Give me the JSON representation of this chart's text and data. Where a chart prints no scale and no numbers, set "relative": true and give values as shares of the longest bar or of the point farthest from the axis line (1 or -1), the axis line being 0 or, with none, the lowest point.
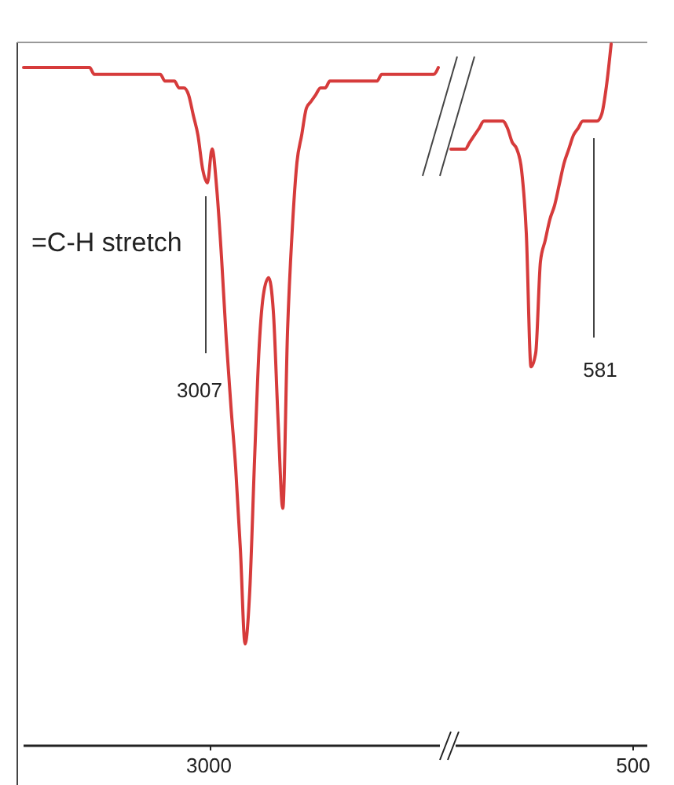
{
  "chart_data": [
    {
      "type": "line",
      "relative": true,
      "color": "#d63b3b",
      "categories": [
        null,
        null,
        null,
        null,
        null,
        null,
        null,
        null,
        null,
        null,
        null,
        null,
        null,
        null,
        null,
        null,
        null,
        null,
        null,
        null,
        null,
        null,
        null,
        null,
        null,
        null,
        null,
        null,
        null,
        null,
        null,
        null,
        null,
        null,
        null,
        null,
        null,
        null,
        null,
        null,
        null,
        null,
        null,
        null,
        null,
        null,
        null,
        null,
        null,
        null,
        null,
        null,
        null,
        null,
        null,
        null,
        null,
        null,
        null,
        null,
        null,
        null,
        null,
        null,
        null,
        null,
        null,
        null,
        null,
        null,
        null,
        null,
        null,
        null,
        null,
        null,
        null,
        null,
        null,
        null,
        null,
        null,
        null,
        null,
        null,
        null,
        null,
        null,
        null
      ],
      "values": [
        1.0,
        1.0,
        1.0,
        1.0,
        1.0,
        1.0,
        1.0,
        1.0,
        1.0,
        1.0,
        1.0,
        1.0,
        1.0,
        1.0,
        1.0,
        0.99,
        0.99,
        0.99,
        0.99,
        0.99,
        0.99,
        0.99,
        0.99,
        0.99,
        0.99,
        0.99,
        0.99,
        0.99,
        0.99,
        0.99,
        0.98,
        0.98,
        0.98,
        0.97,
        0.97,
        0.96,
        0.93,
        0.9,
        0.85,
        0.83,
        0.88,
        0.82,
        0.72,
        0.6,
        0.5,
        0.41,
        0.29,
        0.15,
        0.23,
        0.42,
        0.59,
        0.67,
        0.69,
        0.64,
        0.48,
        0.35,
        0.61,
        0.76,
        0.86,
        0.9,
        0.94,
        0.95,
        0.96,
        0.97,
        0.97,
        0.98,
        0.98,
        0.98,
        0.98,
        0.98,
        0.98,
        0.98,
        0.98,
        0.98,
        0.98,
        0.98,
        0.99,
        0.99,
        0.99,
        0.99,
        0.99,
        0.99,
        0.99,
        0.99,
        0.99,
        0.99,
        0.99,
        0.99,
        1.0
      ],
      "annotations": [
        "=C-H stretch",
        "3007",
        "3000"
      ]
    },
    {
      "type": "line",
      "relative": true,
      "color": "#d63b3b",
      "categories": [
        null,
        null,
        null,
        null,
        null,
        null,
        null,
        null,
        null,
        null,
        null,
        null,
        null,
        null,
        null,
        null,
        null,
        null,
        null,
        null,
        null,
        null,
        null,
        null,
        null,
        null,
        null,
        null,
        null,
        null,
        null,
        null,
        null,
        null,
        null
      ],
      "values": [
        0.85,
        0.85,
        0.85,
        0.85,
        0.86,
        0.87,
        0.88,
        0.89,
        0.89,
        0.89,
        0.89,
        0.89,
        0.88,
        0.86,
        0.85,
        0.82,
        0.73,
        0.54,
        0.56,
        0.69,
        0.72,
        0.75,
        0.77,
        0.8,
        0.83,
        0.85,
        0.87,
        0.88,
        0.89,
        0.89,
        0.89,
        0.89,
        0.9,
        0.94,
        1.0
      ],
      "annotations": [
        "581",
        "500"
      ]
    }
  ]
}
